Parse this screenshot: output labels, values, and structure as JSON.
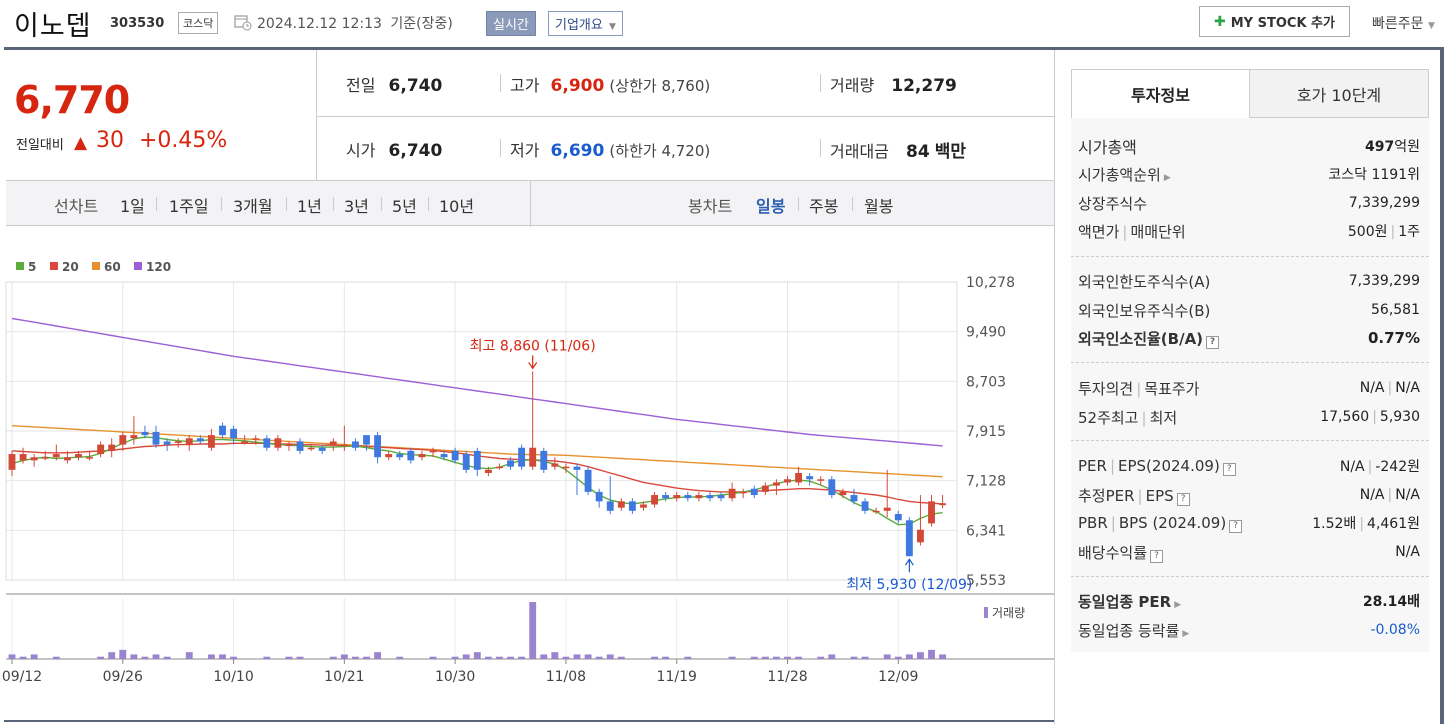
{
  "header": {
    "name": "이노뎁",
    "code": "303530",
    "market": "코스닥",
    "datetime": "2024.12.12 12:13",
    "basis": "기준(장중)",
    "realtime": "실시간",
    "overview": "기업개요",
    "mystock": "MY STOCK 추가",
    "quick_order": "빠른주문"
  },
  "price": {
    "current": "6,770",
    "compare_label": "전일대비",
    "diff": "30",
    "rate": "+0.45%",
    "rows": [
      [
        {
          "label": "전일",
          "value": "6,740",
          "color": "normal"
        },
        {
          "label": "고가",
          "value": "6,900",
          "color": "red",
          "paren": "(상한가 8,760)"
        },
        {
          "label": "거래량",
          "value": "12,279",
          "color": "normal"
        }
      ],
      [
        {
          "label": "시가",
          "value": "6,740",
          "color": "normal"
        },
        {
          "label": "저가",
          "value": "6,690",
          "color": "blue",
          "paren": "(하한가 4,720)"
        },
        {
          "label": "거래대금",
          "value": "84",
          "unit": "백만",
          "color": "normal"
        }
      ]
    ]
  },
  "period_bar": {
    "line_label": "선차트",
    "line_items": [
      "1일",
      "1주일",
      "3개월",
      "1년",
      "3년",
      "5년",
      "10년"
    ],
    "candle_label": "봉차트",
    "candle_items": [
      "일봉",
      "주봉",
      "월봉"
    ],
    "candle_active": "일봉"
  },
  "chart_data": {
    "type": "candlestick",
    "legend": [
      {
        "name": "5",
        "color": "#5aac3c"
      },
      {
        "name": "20",
        "color": "#d94a3c"
      },
      {
        "name": "60",
        "color": "#e6912d"
      },
      {
        "name": "120",
        "color": "#9b5fd6"
      }
    ],
    "y_ticks": [
      "10,278",
      "9,490",
      "8,703",
      "7,915",
      "7,128",
      "6,341",
      "5,553"
    ],
    "ylim": [
      5553,
      10278
    ],
    "x_ticks": [
      "09/12",
      "09/26",
      "10/10",
      "10/21",
      "10/30",
      "11/08",
      "11/19",
      "11/28",
      "12/09"
    ],
    "x_tick_index": [
      0,
      10,
      20,
      30,
      40,
      50,
      60,
      70,
      80
    ],
    "candles": [
      [
        7300,
        7550,
        7200,
        7600,
        2
      ],
      [
        7450,
        7550,
        7400,
        7650,
        1
      ],
      [
        7450,
        7500,
        7350,
        7550,
        2
      ],
      [
        7500,
        7500,
        7450,
        7600,
        0
      ],
      [
        7500,
        7550,
        7450,
        7700,
        1
      ],
      [
        7450,
        7500,
        7400,
        7600,
        0
      ],
      [
        7500,
        7550,
        7450,
        7600,
        0
      ],
      [
        7500,
        7500,
        7450,
        7600,
        0
      ],
      [
        7550,
        7700,
        7500,
        7750,
        1
      ],
      [
        7600,
        7700,
        7500,
        7800,
        3
      ],
      [
        7700,
        7850,
        7600,
        7900,
        4
      ],
      [
        7800,
        7850,
        7700,
        8150,
        2
      ],
      [
        7900,
        7850,
        7800,
        8000,
        1
      ],
      [
        7900,
        7700,
        7650,
        8000,
        2
      ],
      [
        7750,
        7700,
        7600,
        7800,
        1
      ],
      [
        7750,
        7750,
        7650,
        7800,
        0
      ],
      [
        7700,
        7800,
        7600,
        7850,
        3
      ],
      [
        7800,
        7750,
        7700,
        7850,
        0
      ],
      [
        7650,
        7850,
        7600,
        7950,
        2
      ],
      [
        8000,
        7850,
        7800,
        8050,
        2
      ],
      [
        7950,
        7800,
        7700,
        8000,
        1
      ],
      [
        7750,
        7750,
        7700,
        7850,
        0
      ],
      [
        7800,
        7800,
        7700,
        7850,
        0
      ],
      [
        7800,
        7650,
        7600,
        7850,
        1
      ],
      [
        7650,
        7800,
        7600,
        7850,
        0
      ],
      [
        7700,
        7700,
        7600,
        7750,
        1
      ],
      [
        7750,
        7600,
        7550,
        7800,
        1
      ],
      [
        7650,
        7650,
        7600,
        7700,
        0
      ],
      [
        7650,
        7600,
        7550,
        7700,
        0
      ],
      [
        7700,
        7750,
        7600,
        7800,
        1
      ],
      [
        7700,
        7700,
        7600,
        8000,
        2
      ],
      [
        7750,
        7650,
        7600,
        7800,
        1
      ],
      [
        7850,
        7700,
        7600,
        7850,
        1
      ],
      [
        7850,
        7500,
        7400,
        7900,
        3
      ],
      [
        7500,
        7550,
        7450,
        7600,
        0
      ],
      [
        7550,
        7500,
        7450,
        7600,
        1
      ],
      [
        7600,
        7450,
        7400,
        7650,
        0
      ],
      [
        7500,
        7550,
        7450,
        7600,
        0
      ],
      [
        7600,
        7600,
        7500,
        7650,
        1
      ],
      [
        7550,
        7500,
        7450,
        7600,
        0
      ],
      [
        7600,
        7450,
        7400,
        7650,
        1
      ],
      [
        7550,
        7300,
        7250,
        7600,
        2
      ],
      [
        7600,
        7300,
        7200,
        7650,
        3
      ],
      [
        7250,
        7300,
        7200,
        7350,
        1
      ],
      [
        7350,
        7350,
        7300,
        7400,
        1
      ],
      [
        7450,
        7350,
        7300,
        7500,
        1
      ],
      [
        7650,
        7350,
        7300,
        7700,
        1
      ],
      [
        7350,
        7650,
        7300,
        8860,
        25
      ],
      [
        7600,
        7300,
        7250,
        7650,
        2
      ],
      [
        7350,
        7400,
        7300,
        7500,
        3
      ],
      [
        7350,
        7350,
        7250,
        7400,
        1
      ],
      [
        7350,
        7300,
        6900,
        7400,
        2
      ],
      [
        7300,
        6950,
        6900,
        7350,
        2
      ],
      [
        6950,
        6800,
        6700,
        7000,
        1
      ],
      [
        6800,
        6650,
        6600,
        7200,
        2
      ],
      [
        6700,
        6800,
        6650,
        6850,
        1
      ],
      [
        6800,
        6650,
        6600,
        6850,
        0
      ],
      [
        6700,
        6750,
        6650,
        6800,
        0
      ],
      [
        6750,
        6900,
        6700,
        6950,
        1
      ],
      [
        6900,
        6850,
        6800,
        6950,
        1
      ],
      [
        6850,
        6900,
        6800,
        6950,
        0
      ],
      [
        6900,
        6850,
        6800,
        6950,
        1
      ],
      [
        6850,
        6900,
        6800,
        6950,
        0
      ],
      [
        6900,
        6850,
        6800,
        6950,
        0
      ],
      [
        6900,
        6850,
        6800,
        6950,
        0
      ],
      [
        6850,
        7000,
        6800,
        7100,
        1
      ],
      [
        6950,
        6950,
        6850,
        7000,
        0
      ],
      [
        7000,
        6900,
        6850,
        7050,
        1
      ],
      [
        6950,
        7050,
        6900,
        7100,
        1
      ],
      [
        7050,
        7100,
        6900,
        7150,
        1
      ],
      [
        7100,
        7150,
        7050,
        7200,
        1
      ],
      [
        7100,
        7250,
        7050,
        7350,
        1
      ],
      [
        7200,
        7150,
        7050,
        7250,
        0
      ],
      [
        7150,
        7150,
        7050,
        7200,
        1
      ],
      [
        7150,
        6900,
        6850,
        7200,
        2
      ],
      [
        6900,
        6950,
        6850,
        7000,
        0
      ],
      [
        6900,
        6800,
        6750,
        7000,
        1
      ],
      [
        6800,
        6650,
        6600,
        6850,
        1
      ],
      [
        6650,
        6650,
        6600,
        6700,
        0
      ],
      [
        6650,
        6700,
        6550,
        7300,
        2
      ],
      [
        6600,
        6500,
        6450,
        6650,
        1
      ],
      [
        6500,
        5930,
        5930,
        6550,
        2
      ],
      [
        6150,
        6350,
        6100,
        6900,
        3
      ],
      [
        6450,
        6800,
        6400,
        6900,
        4
      ],
      [
        6740,
        6770,
        6690,
        6900,
        2
      ]
    ],
    "ma5": [
      7400,
      7450,
      7480,
      7500,
      7480,
      7490,
      7500,
      7510,
      7560,
      7640,
      7720,
      7790,
      7820,
      7810,
      7780,
      7760,
      7750,
      7760,
      7780,
      7780,
      7770,
      7760,
      7740,
      7720,
      7700,
      7690,
      7680,
      7670,
      7660,
      7660,
      7670,
      7680,
      7650,
      7620,
      7600,
      7560,
      7540,
      7530,
      7520,
      7470,
      7420,
      7370,
      7330,
      7320,
      7340,
      7400,
      7450,
      7460,
      7430,
      7390,
      7300,
      7160,
      7020,
      6900,
      6820,
      6780,
      6760,
      6780,
      6810,
      6840,
      6860,
      6870,
      6870,
      6880,
      6900,
      6920,
      6950,
      6980,
      7030,
      7080,
      7120,
      7140,
      7120,
      7060,
      6980,
      6880,
      6780,
      6700,
      6640,
      6530,
      6430,
      6440,
      6530,
      6600,
      6620
    ],
    "ma20": [
      7600,
      7590,
      7580,
      7570,
      7570,
      7570,
      7580,
      7590,
      7600,
      7610,
      7630,
      7650,
      7670,
      7680,
      7690,
      7700,
      7700,
      7710,
      7710,
      7710,
      7720,
      7720,
      7720,
      7720,
      7710,
      7710,
      7700,
      7700,
      7690,
      7690,
      7680,
      7680,
      7670,
      7660,
      7650,
      7640,
      7630,
      7620,
      7610,
      7590,
      7570,
      7550,
      7520,
      7500,
      7480,
      7470,
      7460,
      7460,
      7450,
      7440,
      7420,
      7390,
      7350,
      7300,
      7250,
      7200,
      7150,
      7100,
      7070,
      7040,
      7010,
      6990,
      6970,
      6960,
      6950,
      6950,
      6950,
      6960,
      6970,
      6980,
      6990,
      7000,
      7000,
      6990,
      6980,
      6960,
      6940,
      6920,
      6900,
      6870,
      6830,
      6800,
      6780,
      6770,
      6760
    ],
    "ma60": [
      8000,
      7990,
      7980,
      7970,
      7960,
      7950,
      7940,
      7930,
      7920,
      7910,
      7900,
      7890,
      7880,
      7870,
      7860,
      7850,
      7840,
      7830,
      7820,
      7810,
      7800,
      7790,
      7780,
      7770,
      7760,
      7750,
      7740,
      7730,
      7720,
      7710,
      7700,
      7690,
      7680,
      7670,
      7660,
      7650,
      7640,
      7630,
      7620,
      7610,
      7600,
      7590,
      7580,
      7570,
      7560,
      7550,
      7545,
      7540,
      7540,
      7535,
      7530,
      7520,
      7510,
      7500,
      7490,
      7480,
      7470,
      7460,
      7450,
      7440,
      7430,
      7420,
      7410,
      7400,
      7390,
      7380,
      7370,
      7360,
      7350,
      7340,
      7330,
      7320,
      7310,
      7300,
      7290,
      7280,
      7270,
      7260,
      7250,
      7240,
      7230,
      7220,
      7210,
      7200,
      7190
    ],
    "ma120": [
      9700,
      9670,
      9640,
      9610,
      9580,
      9550,
      9520,
      9490,
      9460,
      9430,
      9400,
      9370,
      9340,
      9310,
      9280,
      9250,
      9220,
      9190,
      9160,
      9130,
      9100,
      9075,
      9050,
      9025,
      9000,
      8975,
      8950,
      8925,
      8900,
      8875,
      8850,
      8825,
      8800,
      8775,
      8750,
      8725,
      8700,
      8675,
      8650,
      8625,
      8600,
      8575,
      8550,
      8525,
      8500,
      8475,
      8450,
      8425,
      8400,
      8375,
      8350,
      8325,
      8300,
      8275,
      8250,
      8225,
      8200,
      8175,
      8150,
      8125,
      8100,
      8080,
      8060,
      8040,
      8020,
      8000,
      7980,
      7960,
      7940,
      7920,
      7900,
      7880,
      7860,
      7845,
      7830,
      7815,
      7800,
      7785,
      7770,
      7755,
      7740,
      7725,
      7710,
      7695,
      7680
    ],
    "annotations": {
      "high_label": "최고 8,860 (11/06)",
      "high_index": 47,
      "high_value": 8860,
      "low_label": "최저 5,930 (12/09)",
      "low_index": 81,
      "low_value": 5930
    },
    "volume_label": "거래량"
  },
  "right_panel": {
    "tabs": [
      "투자정보",
      "호가 10단계"
    ],
    "market_cap": {
      "label": "시가총액",
      "value": "497",
      "unit": "억원"
    },
    "market_cap_rank": {
      "label": "시가총액순위",
      "value": "코스닥 1191위"
    },
    "listed_shares": {
      "label": "상장주식수",
      "value": "7,339,299"
    },
    "par_label_a": "액면가",
    "par_label_b": "매매단위",
    "par_value_a": "500원",
    "par_value_b": "1주",
    "foreign_limit": {
      "label": "외국인한도주식수(A)",
      "value": "7,339,299"
    },
    "foreign_hold": {
      "label": "외국인보유주식수(B)",
      "value": "56,581"
    },
    "foreign_rate": {
      "label": "외국인소진율(B/A)",
      "value": "0.77%"
    },
    "opinion_a": "투자의견",
    "opinion_b": "목표주가",
    "opinion_val_a": "N/A",
    "opinion_val_b": "N/A",
    "w52_a": "52주최고",
    "w52_b": "최저",
    "w52_val_a": "17,560",
    "w52_val_b": "5,930",
    "per_a": "PER",
    "per_b": "EPS(2024.09)",
    "per_val_a": "N/A",
    "per_val_b": "-242원",
    "est_a": "추정PER",
    "est_b": "EPS",
    "est_val_a": "N/A",
    "est_val_b": "N/A",
    "pbr_a": "PBR",
    "pbr_b": "BPS (2024.09)",
    "pbr_val_a": "1.52배",
    "pbr_val_b": "4,461원",
    "dividend": {
      "label": "배당수익률",
      "value": "N/A"
    },
    "sector_per": {
      "label": "동일업종 PER",
      "value": "28.14배"
    },
    "sector_rate": {
      "label": "동일업종 등락률",
      "value": "-0.08%"
    }
  }
}
